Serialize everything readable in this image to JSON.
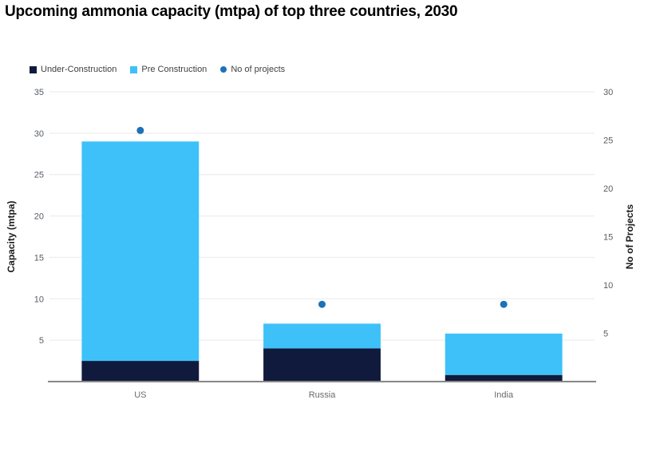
{
  "title": "Upcoming ammonia capacity (mtpa) of top three countries, 2030",
  "legend": [
    {
      "label": "Under-Construction",
      "marker": "square",
      "color": "#101A3C"
    },
    {
      "label": "Pre Construction",
      "marker": "square",
      "color": "#3EC1F8"
    },
    {
      "label": "No of projects",
      "marker": "circle",
      "color": "#1B72B8"
    }
  ],
  "colors": {
    "under_construction": "#101A3C",
    "pre_construction": "#3EC1F8",
    "projects_dot": "#1B72B8",
    "gridline": "#E9E9E9",
    "axis_line": "#878787",
    "tick_text": "#565C66",
    "category_text": "#6A6A6A",
    "axis_title_text": "#1A1A1A"
  },
  "chart_data": {
    "type": "bar",
    "subtype": "stacked-column-with-secondary-scatter",
    "title": "Upcoming ammonia capacity (mtpa) of top three countries, 2030",
    "categories": [
      "US",
      "Russia",
      "India"
    ],
    "series": [
      {
        "name": "Under-Construction",
        "type": "bar",
        "stack": true,
        "axis": "left",
        "color": "#101A3C",
        "values": [
          2.5,
          4,
          0.8
        ]
      },
      {
        "name": "Pre Construction",
        "type": "bar",
        "stack": true,
        "axis": "left",
        "color": "#3EC1F8",
        "values": [
          26.5,
          3,
          5
        ]
      },
      {
        "name": "No of projects",
        "type": "scatter",
        "axis": "right",
        "color": "#1B72B8",
        "values": [
          26,
          8,
          8
        ]
      }
    ],
    "bar_totals": [
      29,
      7,
      5.8
    ],
    "left_axis": {
      "label": "Capacity (mtpa)",
      "min": 0,
      "max": 35,
      "ticks": [
        5,
        10,
        15,
        20,
        25,
        30,
        35
      ]
    },
    "right_axis": {
      "label": "No of Projects",
      "min": 0,
      "max": 30,
      "ticks": [
        5,
        10,
        15,
        20,
        25,
        30
      ]
    },
    "grid": true,
    "legend_position": "top-left"
  }
}
